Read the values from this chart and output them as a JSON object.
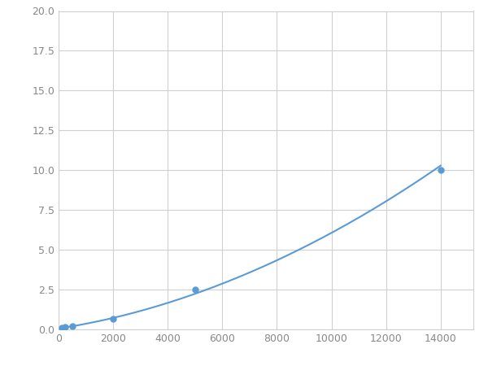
{
  "x": [
    125,
    250,
    500,
    2000,
    5000,
    14000
  ],
  "y": [
    0.08,
    0.15,
    0.18,
    0.65,
    2.5,
    10.0
  ],
  "line_color": "#5b9bd5",
  "marker_color": "#5b9bd5",
  "marker_size": 5,
  "line_width": 1.5,
  "xlim": [
    0,
    15200
  ],
  "ylim": [
    0,
    20.0
  ],
  "xticks": [
    0,
    2000,
    4000,
    6000,
    8000,
    10000,
    12000,
    14000
  ],
  "yticks": [
    0.0,
    2.5,
    5.0,
    7.5,
    10.0,
    12.5,
    15.0,
    17.5,
    20.0
  ],
  "grid_color": "#d0d0d0",
  "background_color": "#ffffff",
  "fig_facecolor": "#ffffff",
  "tick_labelsize": 9,
  "tick_color": "#888888"
}
